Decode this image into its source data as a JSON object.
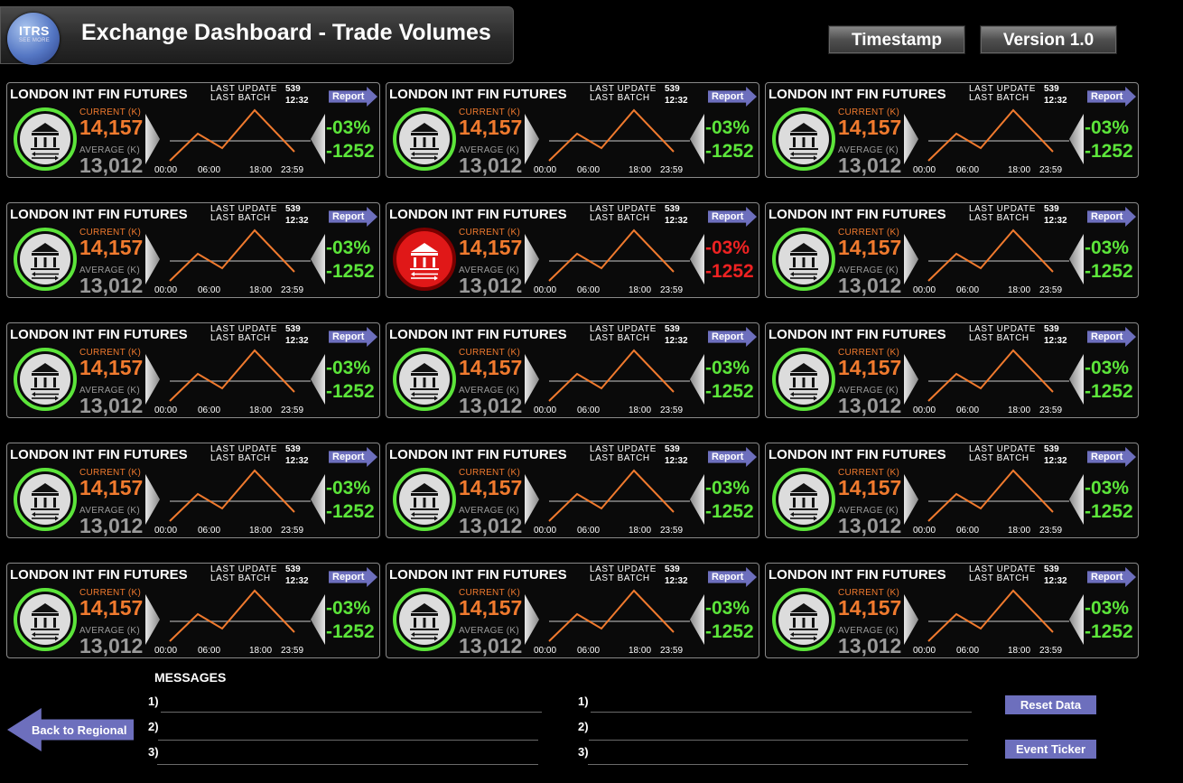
{
  "header": {
    "logo_text": "ITRS",
    "logo_sub": "SEE MORE",
    "title": "Exchange Dashboard - Trade Volumes",
    "timestamp_label": "Timestamp",
    "version_label": "Version 1.0"
  },
  "panel_defaults": {
    "name": "LONDON INT FIN FUTURES",
    "last_update_label": "LAST UPDATE",
    "last_batch_label": "LAST BATCH",
    "last_update_value": "539",
    "last_batch_value": "12:32",
    "report_label": "Report",
    "current_label": "CURRENT (K)",
    "current_value": "14,157",
    "average_label": "AVERAGE (K)",
    "average_value": "13,012",
    "pct_change": "-03%",
    "diff": "-1252",
    "ticks": [
      "00:00",
      "06:00",
      "18:00",
      "23:59"
    ]
  },
  "panels": [
    {
      "row": 1,
      "col": 1,
      "status": "ok"
    },
    {
      "row": 1,
      "col": 2,
      "status": "ok"
    },
    {
      "row": 1,
      "col": 3,
      "status": "ok"
    },
    {
      "row": 2,
      "col": 1,
      "status": "ok"
    },
    {
      "row": 2,
      "col": 2,
      "status": "alert"
    },
    {
      "row": 2,
      "col": 3,
      "status": "ok"
    },
    {
      "row": 3,
      "col": 1,
      "status": "ok"
    },
    {
      "row": 3,
      "col": 2,
      "status": "ok"
    },
    {
      "row": 3,
      "col": 3,
      "status": "ok"
    },
    {
      "row": 4,
      "col": 1,
      "status": "ok"
    },
    {
      "row": 4,
      "col": 2,
      "status": "ok"
    },
    {
      "row": 4,
      "col": 3,
      "status": "ok"
    },
    {
      "row": 5,
      "col": 1,
      "status": "ok"
    },
    {
      "row": 5,
      "col": 2,
      "status": "ok"
    },
    {
      "row": 5,
      "col": 3,
      "status": "ok"
    }
  ],
  "colors": {
    "ok_ring": "#5ce53a",
    "alert_fill": "#e01818",
    "trend_line": "#f07a2e",
    "report_button": "#6d6fbd"
  },
  "icons": {
    "exchange": "bank-exchange-icon"
  },
  "messages": {
    "title": "MESSAGES",
    "left_labels": [
      "1)",
      "2)",
      "3)"
    ],
    "right_labels": [
      "1)",
      "2)",
      "3)"
    ]
  },
  "nav": {
    "back_label": "Back to Regional",
    "reset_label": "Reset Data",
    "ticker_label": "Event Ticker"
  }
}
